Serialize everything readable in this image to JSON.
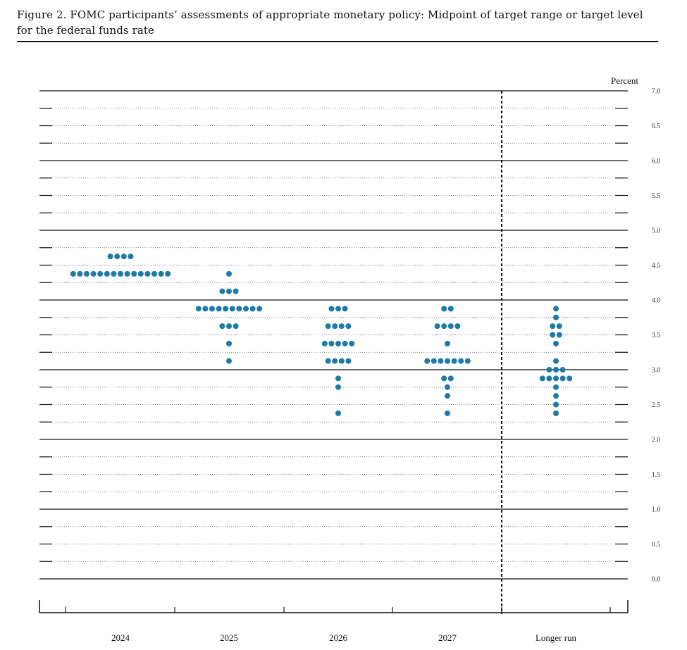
{
  "figure": {
    "title": "Figure 2.  FOMC participants’ assessments of appropriate monetary policy: Midpoint of target range or target level for the federal funds rate"
  },
  "chart_data": {
    "type": "scatter",
    "subtype": "dot-plot",
    "title": "Figure 2.  FOMC participants’ assessments of appropriate monetary policy: Midpoint of target range or target level for the federal funds rate",
    "unit_label": "Percent",
    "categories": [
      "2024",
      "2025",
      "2026",
      "2027",
      "Longer run"
    ],
    "ylim": [
      0.0,
      7.0
    ],
    "yticks": [
      "0.0",
      "0.5",
      "1.0",
      "1.5",
      "2.0",
      "2.5",
      "3.0",
      "3.5",
      "4.0",
      "4.5",
      "5.0",
      "5.5",
      "6.0",
      "6.5",
      "7.0"
    ],
    "grid": "dotted lines every 0.25, solid lines every whole percent",
    "separator": "dashed vertical line between 2027 and Longer run",
    "dot_color": "#1f7aa8",
    "series": [
      {
        "category": "2024",
        "points": [
          {
            "y": 4.625,
            "count": 4
          },
          {
            "y": 4.375,
            "count": 15
          }
        ]
      },
      {
        "category": "2025",
        "points": [
          {
            "y": 4.375,
            "count": 1
          },
          {
            "y": 4.125,
            "count": 3
          },
          {
            "y": 3.875,
            "count": 10
          },
          {
            "y": 3.625,
            "count": 3
          },
          {
            "y": 3.375,
            "count": 1
          },
          {
            "y": 3.125,
            "count": 1
          }
        ]
      },
      {
        "category": "2026",
        "points": [
          {
            "y": 3.875,
            "count": 3
          },
          {
            "y": 3.625,
            "count": 4
          },
          {
            "y": 3.375,
            "count": 5
          },
          {
            "y": 3.125,
            "count": 4
          },
          {
            "y": 2.875,
            "count": 1
          },
          {
            "y": 2.75,
            "count": 1
          },
          {
            "y": 2.375,
            "count": 1
          }
        ]
      },
      {
        "category": "2027",
        "points": [
          {
            "y": 3.875,
            "count": 2
          },
          {
            "y": 3.625,
            "count": 4
          },
          {
            "y": 3.375,
            "count": 1
          },
          {
            "y": 3.125,
            "count": 7
          },
          {
            "y": 2.875,
            "count": 2
          },
          {
            "y": 2.75,
            "count": 1
          },
          {
            "y": 2.625,
            "count": 1
          },
          {
            "y": 2.375,
            "count": 1
          }
        ]
      },
      {
        "category": "Longer run",
        "points": [
          {
            "y": 3.875,
            "count": 1
          },
          {
            "y": 3.75,
            "count": 1
          },
          {
            "y": 3.625,
            "count": 2
          },
          {
            "y": 3.5,
            "count": 2
          },
          {
            "y": 3.375,
            "count": 1
          },
          {
            "y": 3.125,
            "count": 1
          },
          {
            "y": 3.0,
            "count": 3
          },
          {
            "y": 2.875,
            "count": 5
          },
          {
            "y": 2.75,
            "count": 1
          },
          {
            "y": 2.625,
            "count": 1
          },
          {
            "y": 2.5,
            "count": 1
          },
          {
            "y": 2.375,
            "count": 1
          }
        ]
      }
    ]
  }
}
